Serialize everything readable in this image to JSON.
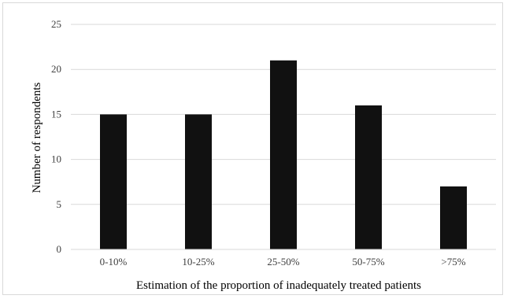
{
  "chart_data": {
    "type": "bar",
    "categories": [
      "0-10%",
      "10-25%",
      "25-50%",
      "50-75%",
      ">75%"
    ],
    "values": [
      15,
      15,
      21,
      16,
      7
    ],
    "title": "",
    "xlabel": "Estimation of the proportion of inadequately treated patients",
    "ylabel": "Number of respondents",
    "ylim": [
      0,
      25
    ],
    "yticks": [
      0,
      5,
      10,
      15,
      20,
      25
    ],
    "grid": true,
    "legend": "none",
    "bar_color": "#111111",
    "grid_color": "#d9d9d9"
  }
}
